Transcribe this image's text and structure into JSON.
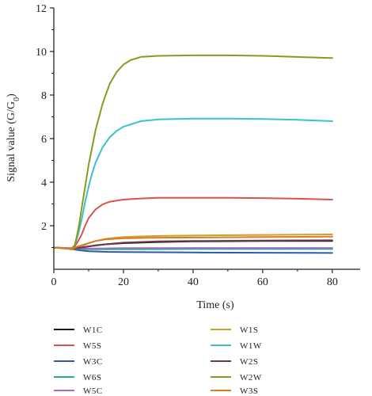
{
  "chart_data": {
    "type": "line",
    "xlabel": "Time (s)",
    "ylabel_main": "Signal value (G/G",
    "ylabel_sub": "0",
    "ylabel_end": ")",
    "xlim": [
      0,
      88
    ],
    "ylim": [
      0,
      12
    ],
    "xticks": [
      0,
      20,
      40,
      60,
      80
    ],
    "yticks": [
      2,
      4,
      6,
      8,
      10,
      12
    ],
    "xtick_labels": [
      "0",
      "20",
      "40",
      "60",
      "80"
    ],
    "ytick_labels": [
      "2",
      "4",
      "6",
      "8",
      "10",
      "12"
    ],
    "grid": false,
    "legend_position": "bottom",
    "series": [
      {
        "name": "W1C",
        "color": "#1a1a1a",
        "x": [
          0,
          5,
          6,
          8,
          10,
          12,
          15,
          20,
          30,
          40,
          60,
          80
        ],
        "y": [
          1.0,
          0.95,
          0.95,
          1.0,
          1.05,
          1.1,
          1.15,
          1.2,
          1.25,
          1.28,
          1.3,
          1.3
        ]
      },
      {
        "name": "W5S",
        "color": "#d9534f",
        "x": [
          0,
          4,
          5,
          6,
          7,
          8,
          9,
          10,
          12,
          14,
          16,
          18,
          20,
          25,
          30,
          40,
          50,
          60,
          70,
          80
        ],
        "y": [
          1.0,
          0.95,
          0.95,
          1.05,
          1.3,
          1.6,
          2.0,
          2.35,
          2.75,
          2.98,
          3.1,
          3.15,
          3.2,
          3.25,
          3.28,
          3.28,
          3.28,
          3.27,
          3.24,
          3.2
        ]
      },
      {
        "name": "W3C",
        "color": "#2a5aa8",
        "x": [
          0,
          5,
          7,
          10,
          15,
          20,
          40,
          60,
          80
        ],
        "y": [
          1.0,
          0.93,
          0.88,
          0.83,
          0.8,
          0.79,
          0.77,
          0.76,
          0.75
        ]
      },
      {
        "name": "W6S",
        "color": "#2fae82",
        "x": [
          0,
          5,
          7,
          10,
          15,
          20,
          40,
          60,
          80
        ],
        "y": [
          1.0,
          0.96,
          0.94,
          0.92,
          0.92,
          0.92,
          0.93,
          0.93,
          0.93
        ]
      },
      {
        "name": "W5C",
        "color": "#9b6fcf",
        "x": [
          0,
          5,
          7,
          10,
          15,
          20,
          40,
          60,
          80
        ],
        "y": [
          1.0,
          0.97,
          0.96,
          0.95,
          0.96,
          0.97,
          0.98,
          0.98,
          0.98
        ]
      },
      {
        "name": "W1S",
        "color": "#c8a32a",
        "x": [
          0,
          4,
          5,
          6,
          8,
          10,
          12,
          15,
          20,
          30,
          40,
          60,
          80
        ],
        "y": [
          1.0,
          0.95,
          0.9,
          0.95,
          1.05,
          1.2,
          1.3,
          1.4,
          1.48,
          1.53,
          1.55,
          1.58,
          1.6
        ]
      },
      {
        "name": "W1W",
        "color": "#3cc0cc",
        "x": [
          0,
          5,
          6,
          7,
          8,
          9,
          10,
          11,
          12,
          14,
          16,
          18,
          20,
          25,
          30,
          40,
          50,
          60,
          70,
          80
        ],
        "y": [
          1.0,
          0.95,
          1.1,
          1.6,
          2.3,
          3.1,
          3.8,
          4.4,
          4.9,
          5.6,
          6.05,
          6.35,
          6.55,
          6.8,
          6.88,
          6.92,
          6.92,
          6.9,
          6.86,
          6.8
        ]
      },
      {
        "name": "W2S",
        "color": "#6b3a4c",
        "x": [
          0,
          5,
          7,
          10,
          15,
          20,
          30,
          40,
          60,
          80
        ],
        "y": [
          1.0,
          0.95,
          0.98,
          1.05,
          1.15,
          1.22,
          1.28,
          1.3,
          1.32,
          1.33
        ]
      },
      {
        "name": "W2W",
        "color": "#8a9a1e",
        "x": [
          0,
          5,
          6,
          7,
          8,
          9,
          10,
          11,
          12,
          14,
          16,
          18,
          20,
          22,
          25,
          30,
          40,
          50,
          60,
          70,
          80
        ],
        "y": [
          1.0,
          0.95,
          1.1,
          1.8,
          2.8,
          3.8,
          4.8,
          5.6,
          6.4,
          7.6,
          8.5,
          9.05,
          9.4,
          9.6,
          9.75,
          9.8,
          9.82,
          9.82,
          9.8,
          9.75,
          9.7
        ]
      },
      {
        "name": "W3S",
        "color": "#e07a1f",
        "x": [
          0,
          5,
          7,
          10,
          12,
          15,
          20,
          30,
          40,
          60,
          80
        ],
        "y": [
          1.0,
          0.95,
          1.05,
          1.2,
          1.3,
          1.38,
          1.42,
          1.45,
          1.46,
          1.48,
          1.5
        ]
      }
    ]
  }
}
